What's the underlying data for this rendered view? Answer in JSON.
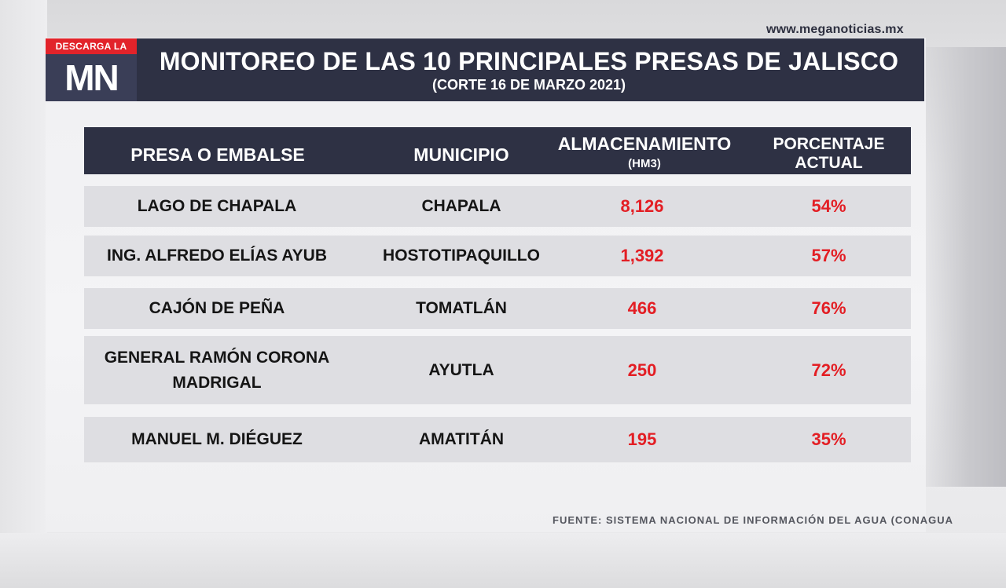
{
  "website": "www.meganoticias.mx",
  "logo": {
    "tag": "DESCARGA LA APP",
    "mark": "MN"
  },
  "header": {
    "title": "MONITOREO DE LAS 10 PRINCIPALES PRESAS DE JALISCO",
    "subtitle": "(CORTE 16 DE MARZO 2021)"
  },
  "table": {
    "columns": {
      "presa": "PRESA O EMBALSE",
      "municipio": "MUNICIPIO",
      "almacenamiento": "ALMACENAMIENTO",
      "almacenamiento_unit": "(HM3)",
      "porcentaje_line1": "PORCENTAJE",
      "porcentaje_line2": "ACTUAL"
    },
    "rows": [
      {
        "presa": "LAGO DE CHAPALA",
        "municipio": "CHAPALA",
        "almacenamiento": "8,126",
        "porcentaje": "54%"
      },
      {
        "presa": "ING. ALFREDO ELÍAS AYUB",
        "municipio": "HOSTOTIPAQUILLO",
        "almacenamiento": "1,392",
        "porcentaje": "57%"
      },
      {
        "presa": "CAJÓN DE PEÑA",
        "municipio": "TOMATLÁN",
        "almacenamiento": "466",
        "porcentaje": "76%"
      },
      {
        "presa_line1": "GENERAL RAMÓN CORONA",
        "presa_line2": "MADRIGAL",
        "municipio": "AYUTLA",
        "almacenamiento": "250",
        "porcentaje": "72%"
      },
      {
        "presa": "MANUEL M. DIÉGUEZ",
        "municipio": "AMATITÁN",
        "almacenamiento": "195",
        "porcentaje": "35%"
      }
    ]
  },
  "source": "FUENTE: SISTEMA NACIONAL DE INFORMACIÓN DEL AGUA (CONAGUA",
  "colors": {
    "header_bg": "#2e3144",
    "accent_red": "#e31e24",
    "row_bg": "#dedee2"
  }
}
